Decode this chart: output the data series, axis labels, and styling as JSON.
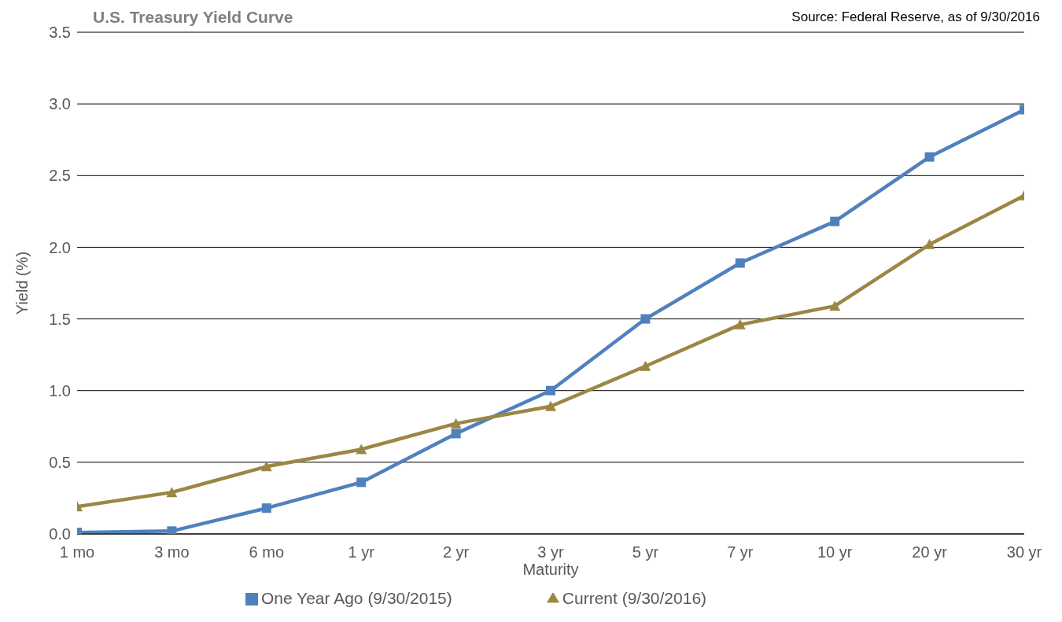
{
  "chart_data": {
    "type": "line",
    "title": "U.S. Treasury Yield Curve",
    "annotations": [
      "Source: Federal Reserve, as of 9/30/2016"
    ],
    "xlabel": "Maturity",
    "ylabel": "Yield (%)",
    "categories": [
      "1 mo",
      "3 mo",
      "6 mo",
      "1 yr",
      "2 yr",
      "3 yr",
      "5 yr",
      "7 yr",
      "10 yr",
      "20 yr",
      "30 yr"
    ],
    "series": [
      {
        "name": "One Year Ago (9/30/2015)",
        "color": "#4f81bd",
        "marker": "square",
        "values": [
          0.01,
          0.02,
          0.18,
          0.36,
          0.7,
          1.0,
          1.5,
          1.89,
          2.18,
          2.63,
          2.96
        ]
      },
      {
        "name": "Current (9/30/2016)",
        "color": "#9b8743",
        "marker": "triangle",
        "values": [
          0.19,
          0.29,
          0.47,
          0.59,
          0.77,
          0.89,
          1.17,
          1.46,
          1.59,
          2.02,
          2.36
        ]
      }
    ],
    "ylim": [
      0,
      3.5
    ],
    "yticks": [
      {
        "value": 0,
        "label": "0.0"
      },
      0.5,
      {
        "value": 1,
        "label": "1.0"
      },
      1.5,
      {
        "value": 2,
        "label": "2.0"
      },
      2.5,
      {
        "value": 3,
        "label": "3.0"
      },
      3.5
    ],
    "grid": "y",
    "legend": "bottom",
    "line_style": "solid"
  }
}
